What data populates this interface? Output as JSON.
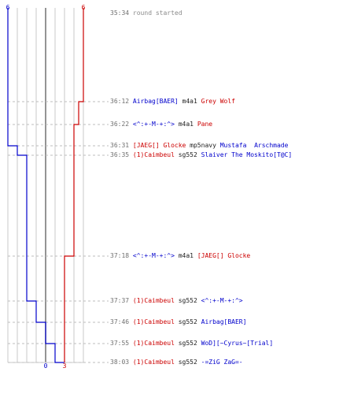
{
  "colors": {
    "blue_team": "#0000cc",
    "red_team": "#cc0000",
    "text": "#202020",
    "time": "#707070",
    "grid": "#c8c8c8",
    "baseline": "#707070"
  },
  "chart_data": {
    "type": "line",
    "description_note": "",
    "score_axis": {
      "min": 0,
      "max": 6,
      "zero_line_label": "",
      "bottom_labels": [
        {
          "value": 0,
          "text": "0",
          "team": "blue"
        },
        {
          "value": 3,
          "text": "3",
          "team": "red"
        }
      ],
      "top_labels": [
        {
          "value": 0,
          "text": "6",
          "team": "blue"
        },
        {
          "value": 6,
          "text": "6",
          "team": "red"
        }
      ]
    },
    "series": [
      {
        "team": "blue",
        "points": [
          {
            "time": "35:34",
            "score": 6
          },
          {
            "time": "36:31",
            "score": 5
          },
          {
            "time": "36:35",
            "score": 4
          },
          {
            "time": "37:37",
            "score": 3
          },
          {
            "time": "37:46",
            "score": 2
          },
          {
            "time": "37:55",
            "score": 1
          },
          {
            "time": "38:03",
            "score": 0
          }
        ]
      },
      {
        "team": "red",
        "points": [
          {
            "time": "35:34",
            "score": 6
          },
          {
            "time": "36:12",
            "score": 5
          },
          {
            "time": "36:22",
            "score": 4
          },
          {
            "time": "37:18",
            "score": 3
          }
        ]
      }
    ]
  },
  "events": [
    {
      "time": "35:34",
      "parts": [
        {
          "text": "round started",
          "cls": "started"
        }
      ]
    },
    {
      "time": "36:12",
      "parts": [
        {
          "text": "Airbag[BAER]",
          "cls": "blue"
        },
        {
          "text": " m4a1 ",
          "cls": "plain"
        },
        {
          "text": "Grey Wolf",
          "cls": "red"
        }
      ]
    },
    {
      "time": "36:22",
      "parts": [
        {
          "text": "<^:+-M-+:^>",
          "cls": "blue"
        },
        {
          "text": " m4a1 ",
          "cls": "plain"
        },
        {
          "text": "Pane",
          "cls": "red"
        }
      ]
    },
    {
      "time": "36:31",
      "parts": [
        {
          "text": "[JAEG[] Glocke",
          "cls": "red"
        },
        {
          "text": " mp5navy ",
          "cls": "plain"
        },
        {
          "text": "Mustafa  Arschmade",
          "cls": "blue"
        }
      ]
    },
    {
      "time": "36:35",
      "parts": [
        {
          "text": "(1)Caimbeul",
          "cls": "red"
        },
        {
          "text": " sg552 ",
          "cls": "plain"
        },
        {
          "text": "Slaiver The Moskito[T@C]",
          "cls": "blue"
        }
      ]
    },
    {
      "time": "37:18",
      "parts": [
        {
          "text": "<^:+-M-+:^>",
          "cls": "blue"
        },
        {
          "text": " m4a1 ",
          "cls": "plain"
        },
        {
          "text": "[JAEG[] Glocke",
          "cls": "red"
        }
      ]
    },
    {
      "time": "37:37",
      "parts": [
        {
          "text": "(1)Caimbeul",
          "cls": "red"
        },
        {
          "text": " sg552 ",
          "cls": "plain"
        },
        {
          "text": "<^:+-M-+:^>",
          "cls": "blue"
        }
      ]
    },
    {
      "time": "37:46",
      "parts": [
        {
          "text": "(1)Caimbeul",
          "cls": "red"
        },
        {
          "text": " sg552 ",
          "cls": "plain"
        },
        {
          "text": "Airbag[BAER]",
          "cls": "blue"
        }
      ]
    },
    {
      "time": "37:55",
      "parts": [
        {
          "text": "(1)Caimbeul",
          "cls": "red"
        },
        {
          "text": " sg552 ",
          "cls": "plain"
        },
        {
          "text": "WoD][~Cyrus~[Trial]",
          "cls": "blue"
        }
      ]
    },
    {
      "time": "38:03",
      "parts": [
        {
          "text": "(1)Caimbeul",
          "cls": "red"
        },
        {
          "text": " sg552 ",
          "cls": "plain"
        },
        {
          "text": "-=ZiG ZaG=-",
          "cls": "blue"
        }
      ]
    }
  ]
}
